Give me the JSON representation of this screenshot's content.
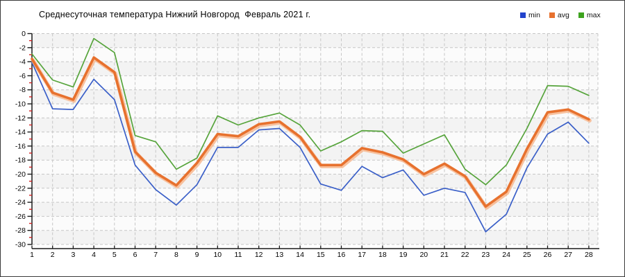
{
  "header": {
    "title": "Среднесуточная температура Нижний Новгород  Февраль 2021 г."
  },
  "legend": [
    {
      "label": "min",
      "color": "#2243cc"
    },
    {
      "label": "avg",
      "color": "#e7712e"
    },
    {
      "label": "max",
      "color": "#3da31e"
    }
  ],
  "chart_data": {
    "type": "line",
    "title": "Среднесуточная температура Нижний Новгород  Февраль 2021 г.",
    "xlabel": "",
    "ylabel": "",
    "categories": [
      1,
      2,
      3,
      4,
      5,
      6,
      7,
      8,
      9,
      10,
      11,
      12,
      13,
      14,
      15,
      16,
      17,
      18,
      19,
      20,
      21,
      22,
      23,
      24,
      25,
      26,
      27,
      28
    ],
    "ylim": [
      -30,
      0
    ],
    "ytick_step": 2,
    "grid": true,
    "legend_position": "top-right",
    "series": [
      {
        "name": "min",
        "color": "#3a5fc8",
        "values": [
          -4.1,
          -10.7,
          -10.8,
          -6.5,
          -9.4,
          -18.7,
          -22.2,
          -24.4,
          -21.5,
          -16.2,
          -16.2,
          -13.7,
          -13.5,
          -16.2,
          -21.4,
          -22.3,
          -18.9,
          -20.5,
          -19.4,
          -23.0,
          -22.0,
          -22.6,
          -28.2,
          -25.7,
          -19.1,
          -14.3,
          -12.6,
          -15.6
        ]
      },
      {
        "name": "avg",
        "color": "#e7712e",
        "values": [
          -3.6,
          -8.4,
          -9.4,
          -3.4,
          -5.5,
          -16.8,
          -19.8,
          -21.6,
          -18.4,
          -14.3,
          -14.6,
          -12.9,
          -12.5,
          -14.7,
          -18.7,
          -18.7,
          -16.3,
          -16.9,
          -17.9,
          -20.0,
          -18.5,
          -20.3,
          -24.6,
          -22.5,
          -16.4,
          -11.2,
          -10.8,
          -12.2
        ]
      },
      {
        "name": "max",
        "color": "#56a43b",
        "values": [
          -2.9,
          -6.6,
          -7.6,
          -0.7,
          -2.7,
          -14.5,
          -15.4,
          -19.3,
          -17.7,
          -11.7,
          -13.0,
          -12.0,
          -11.3,
          -13.0,
          -16.7,
          -15.4,
          -13.8,
          -13.9,
          -17.0,
          -15.7,
          -14.4,
          -19.3,
          -21.5,
          -18.7,
          -13.5,
          -7.4,
          -7.5,
          -8.8
        ]
      }
    ],
    "style": {
      "avg_halo_color": "#f8b488",
      "grid_color": "#c6c6c6",
      "band_color_a": "#f3f3f3",
      "band_color_b": "#fbfbfb",
      "axis_color": "#1a1a1a",
      "minor_tick_color": "#d42020",
      "label_color": "#000000"
    }
  }
}
